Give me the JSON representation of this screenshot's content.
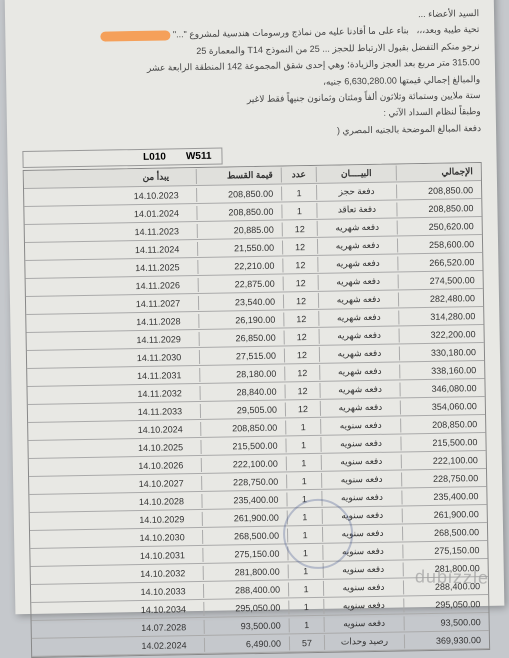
{
  "header": {
    "line1": "السيد الأعضاء ...",
    "line2_a": "تحية طيبة وبعد،،،",
    "line2_b": "بناء على ما أفادنا عليه من نماذج ورسومات هندسية لمشروع \"...\"",
    "line3": "نرجو منكم التفضل بقبول الارتباط للحجز ... 25 من النموذج T14 والمعمارة 25",
    "line4": "315.00 متر مربع بعد العجز والزيادة؛ وهي إحدى شقق المجموعة 142 المنطقة الرابعة عشر",
    "line5": "والمبالغ إجمالي قيمتها 6,630,280.00 جنيه،",
    "line6": "ستة ملايين وستمائة وثلاثون ألفاً ومئتان وثمانون جنيهاً فقط لاغير",
    "line7": "وطبقاً لنظام السداد الآتي :",
    "line8": "دفعة المبالغ الموضحة بالجنيه المصري ("
  },
  "codes": {
    "w": "W511",
    "l": "L010"
  },
  "cols": {
    "total": "الإجمالي",
    "desc": "البيــــان",
    "count": "عدد",
    "installment": "قيمة القسط",
    "date": "يبدأ من"
  },
  "rows": [
    {
      "total": "208,850.00",
      "desc": "دفعة حجز",
      "count": "1",
      "inst": "208,850.00",
      "date": "14.10.2023"
    },
    {
      "total": "208,850.00",
      "desc": "دفعة تعاقد",
      "count": "1",
      "inst": "208,850.00",
      "date": "14.01.2024"
    },
    {
      "total": "250,620.00",
      "desc": "دفعه شهريه",
      "count": "12",
      "inst": "20,885.00",
      "date": "14.11.2023"
    },
    {
      "total": "258,600.00",
      "desc": "دفعه شهريه",
      "count": "12",
      "inst": "21,550.00",
      "date": "14.11.2024"
    },
    {
      "total": "266,520.00",
      "desc": "دفعه شهريه",
      "count": "12",
      "inst": "22,210.00",
      "date": "14.11.2025"
    },
    {
      "total": "274,500.00",
      "desc": "دفعه شهريه",
      "count": "12",
      "inst": "22,875.00",
      "date": "14.11.2026"
    },
    {
      "total": "282,480.00",
      "desc": "دفعه شهريه",
      "count": "12",
      "inst": "23,540.00",
      "date": "14.11.2027"
    },
    {
      "total": "314,280.00",
      "desc": "دفعه شهريه",
      "count": "12",
      "inst": "26,190.00",
      "date": "14.11.2028"
    },
    {
      "total": "322,200.00",
      "desc": "دفعه شهريه",
      "count": "12",
      "inst": "26,850.00",
      "date": "14.11.2029"
    },
    {
      "total": "330,180.00",
      "desc": "دفعه شهريه",
      "count": "12",
      "inst": "27,515.00",
      "date": "14.11.2030"
    },
    {
      "total": "338,160.00",
      "desc": "دفعه شهريه",
      "count": "12",
      "inst": "28,180.00",
      "date": "14.11.2031"
    },
    {
      "total": "346,080.00",
      "desc": "دفعه شهريه",
      "count": "12",
      "inst": "28,840.00",
      "date": "14.11.2032"
    },
    {
      "total": "354,060.00",
      "desc": "دفعه شهريه",
      "count": "12",
      "inst": "29,505.00",
      "date": "14.11.2033"
    },
    {
      "total": "208,850.00",
      "desc": "دفعه سنويه",
      "count": "1",
      "inst": "208,850.00",
      "date": "14.10.2024"
    },
    {
      "total": "215,500.00",
      "desc": "دفعه سنويه",
      "count": "1",
      "inst": "215,500.00",
      "date": "14.10.2025"
    },
    {
      "total": "222,100.00",
      "desc": "دفعه سنويه",
      "count": "1",
      "inst": "222,100.00",
      "date": "14.10.2026"
    },
    {
      "total": "228,750.00",
      "desc": "دفعه سنويه",
      "count": "1",
      "inst": "228,750.00",
      "date": "14.10.2027"
    },
    {
      "total": "235,400.00",
      "desc": "دفعه سنويه",
      "count": "1",
      "inst": "235,400.00",
      "date": "14.10.2028"
    },
    {
      "total": "261,900.00",
      "desc": "دفعه سنويه",
      "count": "1",
      "inst": "261,900.00",
      "date": "14.10.2029"
    },
    {
      "total": "268,500.00",
      "desc": "دفعه سنويه",
      "count": "1",
      "inst": "268,500.00",
      "date": "14.10.2030"
    },
    {
      "total": "275,150.00",
      "desc": "دفعه سنويه",
      "count": "1",
      "inst": "275,150.00",
      "date": "14.10.2031"
    },
    {
      "total": "281,800.00",
      "desc": "دفعه سنويه",
      "count": "1",
      "inst": "281,800.00",
      "date": "14.10.2032"
    },
    {
      "total": "288,400.00",
      "desc": "دفعه سنويه",
      "count": "1",
      "inst": "288,400.00",
      "date": "14.10.2033"
    },
    {
      "total": "295,050.00",
      "desc": "دفعه سنويه",
      "count": "1",
      "inst": "295,050.00",
      "date": "14.10.2034"
    },
    {
      "total": "93,500.00",
      "desc": "دفعه سنويه",
      "count": "1",
      "inst": "93,500.00",
      "date": "14.07.2028"
    },
    {
      "total": "369,930.00",
      "desc": "رصيد وحدات",
      "count": "57",
      "inst": "6,490.00",
      "date": "14.02.2024"
    }
  ],
  "watermark": "dubizzle"
}
